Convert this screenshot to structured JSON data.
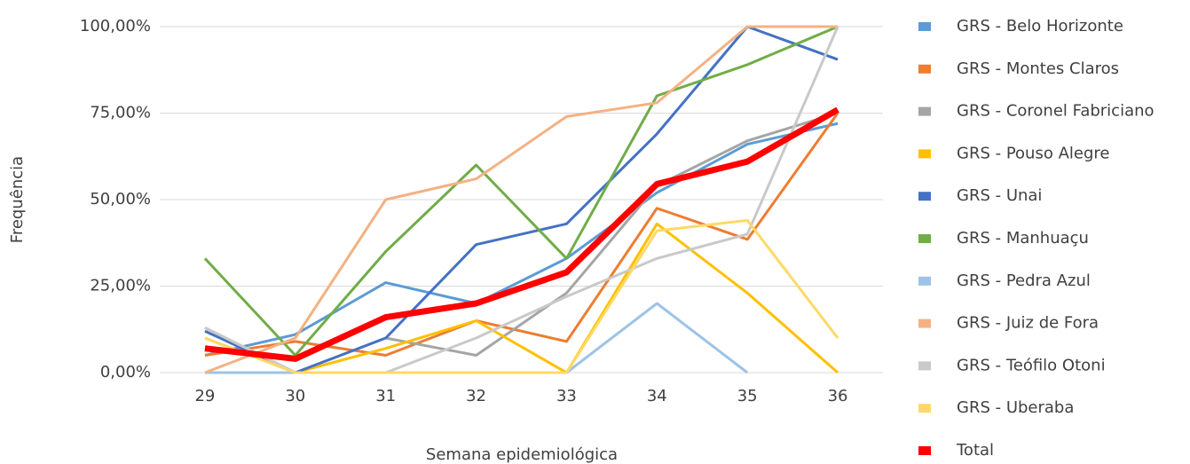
{
  "chart_data": {
    "type": "line",
    "y_axis_label": "Frequência",
    "x_axis_label": "Semana epidemiológica",
    "categories": [
      "29",
      "30",
      "31",
      "32",
      "33",
      "34",
      "35",
      "36"
    ],
    "ylim": [
      0,
      100
    ],
    "yticks": [
      {
        "value": 0,
        "label": "0,00%"
      },
      {
        "value": 25,
        "label": "25,00%"
      },
      {
        "value": 50,
        "label": "50,00%"
      },
      {
        "value": 75,
        "label": "75,00%"
      },
      {
        "value": 100,
        "label": "100,00%"
      }
    ],
    "grid": true,
    "legend": "right",
    "series": [
      {
        "name": "GRS - Belo Horizonte",
        "color": "#5b9bd5",
        "values": [
          5,
          11,
          26,
          20,
          33,
          52,
          66,
          72
        ]
      },
      {
        "name": "GRS - Montes Claros",
        "color": "#ed7d31",
        "values": [
          5,
          9,
          5,
          15,
          9,
          47.5,
          38.5,
          75
        ]
      },
      {
        "name": "GRS - Coronel Fabriciano",
        "color": "#a5a5a5",
        "values": [
          13,
          0,
          10,
          5,
          23,
          54,
          67,
          75
        ]
      },
      {
        "name": "GRS - Pouso Alegre",
        "color": "#ffc000",
        "values": [
          10,
          0,
          7,
          15,
          0,
          43,
          23,
          0
        ]
      },
      {
        "name": "GRS - Unai",
        "color": "#4472c4",
        "values": [
          12,
          0,
          10,
          37,
          43,
          69,
          100,
          90.5
        ]
      },
      {
        "name": "GRS - Manhuaçu",
        "color": "#70ad47",
        "values": [
          33,
          5,
          35,
          60,
          33,
          80,
          89,
          100
        ]
      },
      {
        "name": "GRS - Pedra Azul",
        "color": "#9dc3e6",
        "values": [
          0,
          0,
          0,
          0,
          0,
          20,
          0,
          null
        ]
      },
      {
        "name": "GRS - Juiz de Fora",
        "color": "#f4b183",
        "values": [
          0,
          10,
          50,
          56,
          74,
          78,
          100,
          100
        ]
      },
      {
        "name": "GRS - Teófilo Otoni",
        "color": "#c9c9c9",
        "values": [
          13,
          0,
          0,
          10,
          22,
          33,
          40,
          100
        ]
      },
      {
        "name": "GRS - Uberaba",
        "color": "#ffd966",
        "values": [
          10,
          0,
          0,
          0,
          0,
          41,
          44,
          10
        ]
      },
      {
        "name": "Total",
        "color": "#ff0000",
        "values": [
          7,
          4,
          16,
          20,
          29,
          54.5,
          61,
          76
        ]
      }
    ]
  }
}
